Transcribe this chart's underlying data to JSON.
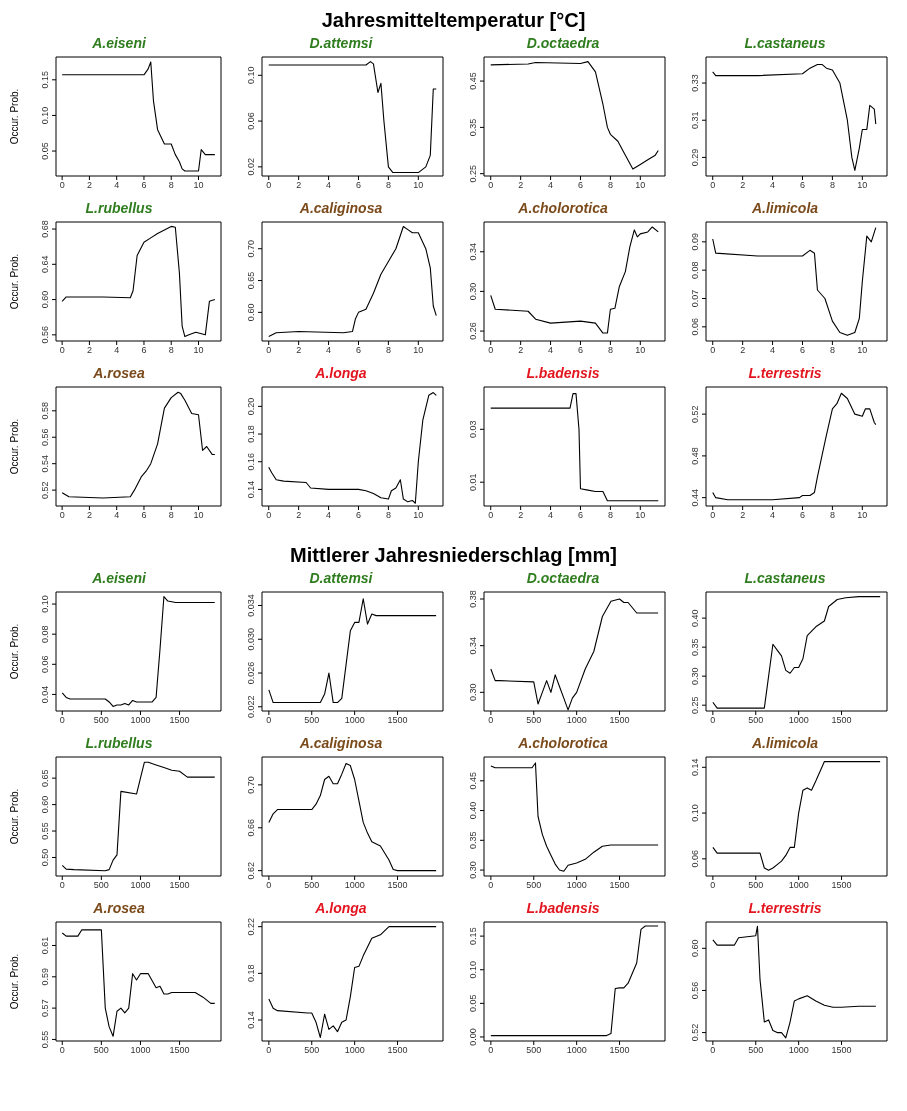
{
  "chart_data": [
    {
      "type": "line",
      "title": "A.eiseni",
      "annotations": [
        "Jahresmitteltemperatur [°C]"
      ],
      "ylabel": "Occur. Prob.",
      "x": [
        0,
        6,
        6.3,
        6.5,
        6.7,
        7,
        7.5,
        8,
        8.3,
        8.6,
        8.8,
        9,
        9.5,
        10,
        10.2,
        10.5,
        11.2
      ],
      "series": [
        {
          "color": "#000000",
          "values": [
            0.157,
            0.157,
            0.165,
            0.175,
            0.12,
            0.08,
            0.06,
            0.06,
            0.045,
            0.035,
            0.025,
            0.022,
            0.022,
            0.022,
            0.052,
            0.045,
            0.045
          ]
        }
      ],
      "xlim": [
        -0.45,
        11.65
      ],
      "xticks": [
        0,
        2,
        4,
        6,
        8,
        10
      ],
      "ylim": [
        0.015,
        0.182
      ],
      "yticks": [
        0.05,
        {
          "value": 0.1,
          "label": "0.10"
        },
        0.15
      ]
    },
    {
      "type": "line",
      "title": "D.attemsi",
      "x": [
        0,
        6.5,
        6.8,
        7,
        7.3,
        7.5,
        7.7,
        8,
        8.3,
        9,
        10,
        10.5,
        10.8,
        11,
        11.2
      ],
      "series": [
        {
          "color": "#000000",
          "values": [
            0.109,
            0.109,
            0.112,
            0.11,
            0.085,
            0.093,
            0.06,
            0.02,
            0.015,
            0.015,
            0.015,
            0.02,
            0.03,
            0.088,
            0.088
          ]
        }
      ],
      "xlim": [
        -0.45,
        11.65
      ],
      "xticks": [
        0,
        2,
        4,
        6,
        8,
        10
      ],
      "ylim": [
        0.012,
        0.116
      ],
      "yticks": [
        0.02,
        0.06,
        {
          "value": 0.1,
          "label": "0.10"
        }
      ]
    },
    {
      "type": "line",
      "title": "D.octaedra",
      "x": [
        0,
        2.5,
        3,
        6,
        6.5,
        7,
        7.5,
        7.8,
        8,
        8.5,
        9,
        9.5,
        10,
        10.5,
        11,
        11.2
      ],
      "series": [
        {
          "color": "#000000",
          "values": [
            0.485,
            0.487,
            0.49,
            0.488,
            0.492,
            0.47,
            0.4,
            0.35,
            0.335,
            0.32,
            0.29,
            0.26,
            0.27,
            0.28,
            0.29,
            0.3
          ]
        }
      ],
      "xlim": [
        -0.45,
        11.65
      ],
      "xticks": [
        0,
        2,
        4,
        6,
        8,
        10
      ],
      "ylim": [
        0.245,
        0.502
      ],
      "yticks": [
        0.25,
        0.35,
        0.45
      ]
    },
    {
      "type": "line",
      "title": "L.castaneus",
      "x": [
        0,
        0.2,
        3,
        6,
        6.5,
        7,
        7.3,
        7.6,
        8,
        8.5,
        9,
        9.3,
        9.5,
        9.8,
        10,
        10.3,
        10.5,
        10.8,
        10.9
      ],
      "series": [
        {
          "color": "#000000",
          "values": [
            0.336,
            0.334,
            0.334,
            0.335,
            0.338,
            0.34,
            0.34,
            0.338,
            0.337,
            0.33,
            0.31,
            0.29,
            0.283,
            0.295,
            0.305,
            0.305,
            0.318,
            0.316,
            0.308
          ]
        }
      ],
      "xlim": [
        -0.45,
        11.65
      ],
      "xticks": [
        0,
        2,
        4,
        6,
        8,
        10
      ],
      "ylim": [
        0.28,
        0.344
      ],
      "yticks": [
        0.29,
        0.31,
        0.33
      ]
    },
    {
      "type": "line",
      "title": "L.rubellus",
      "ylabel": "Occur. Prob.",
      "x": [
        0,
        0.3,
        3,
        5,
        5.2,
        5.5,
        6,
        6.5,
        7,
        8,
        8.3,
        8.6,
        8.8,
        9,
        9.3,
        9.8,
        10.5,
        10.8,
        11.2
      ],
      "series": [
        {
          "color": "#000000",
          "values": [
            0.598,
            0.603,
            0.603,
            0.602,
            0.61,
            0.65,
            0.665,
            0.67,
            0.675,
            0.683,
            0.682,
            0.63,
            0.57,
            0.558,
            0.56,
            0.563,
            0.56,
            0.598,
            0.6
          ]
        }
      ],
      "xlim": [
        -0.45,
        11.65
      ],
      "xticks": [
        0,
        2,
        4,
        6,
        8,
        10
      ],
      "ylim": [
        0.553,
        0.688
      ],
      "yticks": [
        0.56,
        {
          "value": 0.6,
          "label": "0.60"
        },
        0.64,
        0.68
      ]
    },
    {
      "type": "line",
      "title": "A.caliginosa",
      "x": [
        0,
        0.5,
        2,
        5,
        5.6,
        5.8,
        6,
        6.5,
        7,
        7.5,
        8,
        8.5,
        9,
        9.3,
        9.6,
        10,
        10.5,
        10.8,
        11,
        11.2
      ],
      "series": [
        {
          "color": "#000000",
          "values": [
            0.562,
            0.568,
            0.57,
            0.568,
            0.57,
            0.59,
            0.6,
            0.605,
            0.63,
            0.66,
            0.68,
            0.7,
            0.735,
            0.73,
            0.725,
            0.725,
            0.7,
            0.67,
            0.61,
            0.595
          ]
        }
      ],
      "xlim": [
        -0.45,
        11.65
      ],
      "xticks": [
        0,
        2,
        4,
        6,
        8,
        10
      ],
      "ylim": [
        0.555,
        0.742
      ],
      "yticks": [
        {
          "value": 0.6,
          "label": "0.60"
        },
        0.65,
        {
          "value": 0.7,
          "label": "0.70"
        }
      ]
    },
    {
      "type": "line",
      "title": "A.cholorotica",
      "x": [
        0,
        0.3,
        2.5,
        3,
        4,
        6,
        7,
        7.5,
        7.8,
        8,
        8.3,
        8.6,
        9,
        9.3,
        9.6,
        9.8,
        10,
        10.5,
        10.8,
        11.2
      ],
      "series": [
        {
          "color": "#000000",
          "values": [
            0.296,
            0.282,
            0.28,
            0.272,
            0.268,
            0.27,
            0.268,
            0.258,
            0.258,
            0.282,
            0.283,
            0.305,
            0.32,
            0.345,
            0.362,
            0.355,
            0.358,
            0.36,
            0.365,
            0.36
          ]
        }
      ],
      "xlim": [
        -0.45,
        11.65
      ],
      "xticks": [
        0,
        2,
        4,
        6,
        8,
        10
      ],
      "ylim": [
        0.25,
        0.37
      ],
      "yticks": [
        0.26,
        {
          "value": 0.3,
          "label": "0.30"
        },
        0.34
      ]
    },
    {
      "type": "line",
      "title": "A.limicola",
      "x": [
        0,
        0.2,
        3,
        6,
        6.5,
        6.8,
        7,
        7.5,
        8,
        8.5,
        9,
        9.5,
        9.8,
        10,
        10.3,
        10.6,
        10.9
      ],
      "series": [
        {
          "color": "#000000",
          "values": [
            0.091,
            0.086,
            0.085,
            0.085,
            0.087,
            0.086,
            0.073,
            0.07,
            0.062,
            0.058,
            0.057,
            0.058,
            0.063,
            0.076,
            0.092,
            0.09,
            0.095
          ]
        }
      ],
      "xlim": [
        -0.45,
        11.65
      ],
      "xticks": [
        0,
        2,
        4,
        6,
        8,
        10
      ],
      "ylim": [
        0.055,
        0.097
      ],
      "yticks": [
        0.06,
        0.07,
        0.08,
        0.09
      ]
    },
    {
      "type": "line",
      "title": "A.rosea",
      "ylabel": "Occur. Prob.",
      "x": [
        0,
        0.5,
        3,
        5,
        5.3,
        5.8,
        6.2,
        6.5,
        7,
        7.5,
        8,
        8.5,
        8.7,
        9,
        9.5,
        10,
        10.3,
        10.6,
        11,
        11.2
      ],
      "series": [
        {
          "color": "#000000",
          "values": [
            0.518,
            0.515,
            0.514,
            0.515,
            0.52,
            0.53,
            0.535,
            0.54,
            0.555,
            0.582,
            0.59,
            0.594,
            0.593,
            0.588,
            0.578,
            0.577,
            0.55,
            0.553,
            0.547,
            0.547
          ]
        }
      ],
      "xlim": [
        -0.45,
        11.65
      ],
      "xticks": [
        0,
        2,
        4,
        6,
        8,
        10
      ],
      "ylim": [
        0.508,
        0.598
      ],
      "yticks": [
        0.52,
        0.54,
        0.56,
        0.58
      ]
    },
    {
      "type": "line",
      "title": "A.longa",
      "x": [
        0,
        0.2,
        0.5,
        1,
        2.5,
        2.8,
        4,
        6,
        6.5,
        7,
        7.5,
        8,
        8.2,
        8.5,
        8.8,
        9,
        9.3,
        9.6,
        9.8,
        10,
        10.3,
        10.7,
        11,
        11.2
      ],
      "series": [
        {
          "color": "#000000",
          "values": [
            0.156,
            0.152,
            0.147,
            0.146,
            0.145,
            0.141,
            0.14,
            0.14,
            0.139,
            0.137,
            0.134,
            0.133,
            0.139,
            0.141,
            0.147,
            0.133,
            0.131,
            0.132,
            0.13,
            0.16,
            0.19,
            0.208,
            0.21,
            0.208
          ]
        }
      ],
      "xlim": [
        -0.45,
        11.65
      ],
      "xticks": [
        0,
        2,
        4,
        6,
        8,
        10
      ],
      "ylim": [
        0.128,
        0.214
      ],
      "yticks": [
        0.14,
        0.16,
        0.18,
        {
          "value": 0.2,
          "label": "0.20"
        }
      ]
    },
    {
      "type": "line",
      "title": "L.badensis",
      "x": [
        0,
        5.3,
        5.5,
        5.7,
        5.9,
        6,
        6.5,
        7,
        7.5,
        7.8,
        8,
        9,
        10,
        11.2
      ],
      "series": [
        {
          "color": "#000000",
          "values": [
            0.038,
            0.038,
            0.0435,
            0.0435,
            0.03,
            0.0075,
            0.007,
            0.0065,
            0.0065,
            0.003,
            0.003,
            0.003,
            0.003,
            0.003
          ]
        }
      ],
      "xlim": [
        -0.45,
        11.65
      ],
      "xticks": [
        0,
        2,
        4,
        6,
        8,
        10
      ],
      "ylim": [
        0.001,
        0.046
      ],
      "yticks": [
        0.01,
        0.03
      ]
    },
    {
      "type": "line",
      "title": "L.terrestris",
      "x": [
        0,
        0.2,
        1,
        4,
        5.8,
        6,
        6.5,
        6.8,
        7,
        7.3,
        7.6,
        8,
        8.3,
        8.6,
        9,
        9.5,
        10,
        10.2,
        10.5,
        10.8,
        10.9
      ],
      "series": [
        {
          "color": "#000000",
          "values": [
            0.445,
            0.44,
            0.438,
            0.438,
            0.44,
            0.442,
            0.442,
            0.445,
            0.46,
            0.48,
            0.5,
            0.525,
            0.53,
            0.54,
            0.535,
            0.52,
            0.518,
            0.525,
            0.525,
            0.512,
            0.51
          ]
        }
      ],
      "xlim": [
        -0.45,
        11.65
      ],
      "xticks": [
        0,
        2,
        4,
        6,
        8,
        10
      ],
      "ylim": [
        0.432,
        0.546
      ],
      "yticks": [
        0.44,
        0.48,
        0.52
      ]
    },
    {
      "type": "line",
      "title": "A.eiseni",
      "annotations": [
        "Mittlerer Jahresniederschlag [mm]"
      ],
      "ylabel": "Occur. Prob.",
      "x": [
        0,
        50,
        100,
        550,
        600,
        650,
        700,
        750,
        800,
        850,
        900,
        950,
        1150,
        1200,
        1250,
        1300,
        1350,
        1450,
        1950
      ],
      "series": [
        {
          "color": "#000000",
          "values": [
            0.041,
            0.038,
            0.037,
            0.037,
            0.035,
            0.032,
            0.033,
            0.033,
            0.034,
            0.033,
            0.036,
            0.035,
            0.035,
            0.038,
            0.07,
            0.105,
            0.102,
            0.101,
            0.101
          ]
        }
      ],
      "xlim": [
        -80,
        2030
      ],
      "xticks": [
        0,
        500,
        1000,
        1500
      ],
      "ylim": [
        0.029,
        0.108
      ],
      "yticks": [
        0.04,
        0.06,
        0.08,
        {
          "value": 0.1,
          "label": "0.10"
        }
      ]
    },
    {
      "type": "line",
      "title": "D.attemsi",
      "x": [
        0,
        50,
        100,
        600,
        650,
        700,
        750,
        800,
        850,
        900,
        950,
        1000,
        1050,
        1100,
        1150,
        1200,
        1250,
        1950
      ],
      "series": [
        {
          "color": "#000000",
          "values": [
            0.024,
            0.0225,
            0.0225,
            0.0225,
            0.0235,
            0.026,
            0.0225,
            0.0225,
            0.023,
            0.027,
            0.031,
            0.032,
            0.032,
            0.0348,
            0.0318,
            0.033,
            0.0328,
            0.0328
          ]
        }
      ],
      "xlim": [
        -80,
        2030
      ],
      "xticks": [
        0,
        500,
        1000,
        1500
      ],
      "ylim": [
        0.0215,
        0.0356
      ],
      "yticks": [
        0.022,
        0.026,
        {
          "value": 0.03,
          "label": "0.030"
        },
        0.034
      ]
    },
    {
      "type": "line",
      "title": "D.octaedra",
      "x": [
        0,
        50,
        100,
        500,
        550,
        600,
        650,
        700,
        750,
        800,
        850,
        900,
        950,
        1000,
        1100,
        1200,
        1300,
        1400,
        1500,
        1550,
        1600,
        1700,
        1950
      ],
      "series": [
        {
          "color": "#000000",
          "values": [
            0.32,
            0.31,
            0.31,
            0.309,
            0.29,
            0.3,
            0.31,
            0.3,
            0.315,
            0.305,
            0.295,
            0.285,
            0.295,
            0.3,
            0.32,
            0.335,
            0.365,
            0.378,
            0.38,
            0.377,
            0.377,
            0.368,
            0.368
          ]
        }
      ],
      "xlim": [
        -80,
        2030
      ],
      "xticks": [
        0,
        500,
        1000,
        1500
      ],
      "ylim": [
        0.284,
        0.386
      ],
      "yticks": [
        {
          "value": 0.3,
          "label": "0.30"
        },
        0.34,
        0.38
      ]
    },
    {
      "type": "line",
      "title": "L.castaneus",
      "x": [
        0,
        50,
        600,
        650,
        700,
        750,
        800,
        850,
        900,
        950,
        1000,
        1050,
        1100,
        1200,
        1300,
        1350,
        1450,
        1550,
        1700,
        1950
      ],
      "series": [
        {
          "color": "#000000",
          "values": [
            0.255,
            0.245,
            0.245,
            0.3,
            0.355,
            0.345,
            0.335,
            0.31,
            0.305,
            0.315,
            0.315,
            0.33,
            0.37,
            0.385,
            0.395,
            0.42,
            0.432,
            0.435,
            0.437,
            0.437
          ]
        }
      ],
      "xlim": [
        -80,
        2030
      ],
      "xticks": [
        0,
        500,
        1000,
        1500
      ],
      "ylim": [
        0.24,
        0.445
      ],
      "yticks": [
        0.25,
        {
          "value": 0.3,
          "label": "0.30"
        },
        0.35,
        {
          "value": 0.4,
          "label": "0.40"
        }
      ]
    },
    {
      "type": "line",
      "title": "L.rubellus",
      "ylabel": "Occur. Prob.",
      "x": [
        0,
        50,
        150,
        550,
        600,
        650,
        700,
        750,
        950,
        1000,
        1050,
        1100,
        1200,
        1300,
        1400,
        1500,
        1600,
        1700,
        1950
      ],
      "series": [
        {
          "color": "#000000",
          "values": [
            0.485,
            0.478,
            0.477,
            0.475,
            0.477,
            0.495,
            0.505,
            0.625,
            0.62,
            0.65,
            0.68,
            0.68,
            0.675,
            0.67,
            0.665,
            0.663,
            0.652,
            0.652,
            0.652
          ]
        }
      ],
      "xlim": [
        -80,
        2030
      ],
      "xticks": [
        0,
        500,
        1000,
        1500
      ],
      "ylim": [
        0.465,
        0.69
      ],
      "yticks": [
        {
          "value": 0.5,
          "label": "0.50"
        },
        0.55,
        {
          "value": 0.6,
          "label": "0.60"
        },
        0.65
      ]
    },
    {
      "type": "line",
      "title": "A.caliginosa",
      "x": [
        0,
        50,
        100,
        500,
        550,
        600,
        650,
        700,
        750,
        800,
        850,
        900,
        950,
        1000,
        1050,
        1100,
        1150,
        1200,
        1300,
        1400,
        1450,
        1500,
        1950
      ],
      "series": [
        {
          "color": "#000000",
          "values": [
            0.665,
            0.673,
            0.677,
            0.677,
            0.682,
            0.69,
            0.705,
            0.708,
            0.701,
            0.701,
            0.71,
            0.72,
            0.718,
            0.705,
            0.685,
            0.665,
            0.655,
            0.647,
            0.643,
            0.63,
            0.621,
            0.62,
            0.62
          ]
        }
      ],
      "xlim": [
        -80,
        2030
      ],
      "xticks": [
        0,
        500,
        1000,
        1500
      ],
      "ylim": [
        0.615,
        0.726
      ],
      "yticks": [
        0.62,
        0.66,
        {
          "value": 0.7,
          "label": "0.70"
        }
      ]
    },
    {
      "type": "line",
      "title": "A.cholorotica",
      "x": [
        0,
        50,
        250,
        480,
        520,
        550,
        600,
        650,
        700,
        750,
        800,
        850,
        900,
        1000,
        1100,
        1200,
        1300,
        1400,
        1950
      ],
      "series": [
        {
          "color": "#000000",
          "values": [
            0.475,
            0.472,
            0.472,
            0.472,
            0.48,
            0.39,
            0.36,
            0.34,
            0.325,
            0.31,
            0.3,
            0.298,
            0.308,
            0.312,
            0.318,
            0.33,
            0.34,
            0.342,
            0.342
          ]
        }
      ],
      "xlim": [
        -80,
        2030
      ],
      "xticks": [
        0,
        500,
        1000,
        1500
      ],
      "ylim": [
        0.29,
        0.49
      ],
      "yticks": [
        {
          "value": 0.3,
          "label": "0.30"
        },
        0.35,
        {
          "value": 0.4,
          "label": "0.40"
        },
        0.45
      ]
    },
    {
      "type": "line",
      "title": "A.limicola",
      "x": [
        0,
        50,
        500,
        550,
        600,
        650,
        700,
        750,
        800,
        850,
        900,
        950,
        1000,
        1050,
        1100,
        1150,
        1200,
        1300,
        1950
      ],
      "series": [
        {
          "color": "#000000",
          "values": [
            0.07,
            0.065,
            0.065,
            0.065,
            0.052,
            0.05,
            0.052,
            0.055,
            0.058,
            0.063,
            0.07,
            0.07,
            0.1,
            0.12,
            0.122,
            0.12,
            0.128,
            0.145,
            0.145
          ]
        }
      ],
      "xlim": [
        -80,
        2030
      ],
      "xticks": [
        0,
        500,
        1000,
        1500
      ],
      "ylim": [
        0.045,
        0.149
      ],
      "yticks": [
        0.06,
        {
          "value": 0.1,
          "label": "0.10"
        },
        0.14
      ]
    },
    {
      "type": "line",
      "title": "A.rosea",
      "ylabel": "Occur. Prob.",
      "x": [
        0,
        50,
        200,
        250,
        500,
        550,
        600,
        650,
        700,
        750,
        800,
        850,
        900,
        950,
        1000,
        1100,
        1200,
        1250,
        1300,
        1350,
        1400,
        1500,
        1700,
        1800,
        1900,
        1950
      ],
      "series": [
        {
          "color": "#000000",
          "values": [
            0.618,
            0.616,
            0.616,
            0.62,
            0.62,
            0.57,
            0.558,
            0.552,
            0.568,
            0.57,
            0.567,
            0.57,
            0.592,
            0.588,
            0.592,
            0.592,
            0.583,
            0.584,
            0.579,
            0.579,
            0.58,
            0.58,
            0.58,
            0.577,
            0.573,
            0.573
          ]
        }
      ],
      "xlim": [
        -80,
        2030
      ],
      "xticks": [
        0,
        500,
        1000,
        1500
      ],
      "ylim": [
        0.549,
        0.625
      ],
      "yticks": [
        0.55,
        0.57,
        0.59,
        0.61
      ]
    },
    {
      "type": "line",
      "title": "A.longa",
      "x": [
        0,
        50,
        100,
        450,
        500,
        550,
        600,
        650,
        700,
        750,
        800,
        850,
        900,
        950,
        1000,
        1050,
        1100,
        1200,
        1300,
        1400,
        1950
      ],
      "series": [
        {
          "color": "#000000",
          "values": [
            0.158,
            0.15,
            0.148,
            0.146,
            0.146,
            0.138,
            0.125,
            0.145,
            0.132,
            0.135,
            0.13,
            0.138,
            0.14,
            0.16,
            0.185,
            0.186,
            0.195,
            0.21,
            0.213,
            0.22,
            0.22
          ]
        }
      ],
      "xlim": [
        -80,
        2030
      ],
      "xticks": [
        0,
        500,
        1000,
        1500
      ],
      "ylim": [
        0.122,
        0.224
      ],
      "yticks": [
        0.14,
        0.18,
        0.22
      ]
    },
    {
      "type": "line",
      "title": "L.badensis",
      "x": [
        0,
        1350,
        1400,
        1450,
        1500,
        1550,
        1600,
        1700,
        1750,
        1800,
        1950
      ],
      "series": [
        {
          "color": "#000000",
          "values": [
            0.002,
            0.002,
            0.005,
            0.072,
            0.073,
            0.073,
            0.08,
            0.11,
            0.16,
            0.165,
            0.165
          ]
        }
      ],
      "xlim": [
        -80,
        2030
      ],
      "xticks": [
        0,
        500,
        1000,
        1500
      ],
      "ylim": [
        -0.006,
        0.171
      ],
      "yticks": [
        {
          "value": 0,
          "label": "0.00"
        },
        0.05,
        {
          "value": 0.1,
          "label": "0.10"
        },
        0.15
      ]
    },
    {
      "type": "line",
      "title": "L.terrestris",
      "x": [
        0,
        50,
        100,
        250,
        300,
        500,
        520,
        550,
        600,
        650,
        700,
        750,
        800,
        850,
        900,
        950,
        1000,
        1100,
        1200,
        1300,
        1400,
        1500,
        1700,
        1900
      ],
      "series": [
        {
          "color": "#000000",
          "values": [
            0.608,
            0.603,
            0.603,
            0.603,
            0.61,
            0.612,
            0.621,
            0.57,
            0.53,
            0.532,
            0.522,
            0.52,
            0.52,
            0.515,
            0.53,
            0.55,
            0.552,
            0.555,
            0.55,
            0.546,
            0.544,
            0.544,
            0.545,
            0.545
          ]
        }
      ],
      "xlim": [
        -80,
        2030
      ],
      "xticks": [
        0,
        500,
        1000,
        1500
      ],
      "ylim": [
        0.512,
        0.625
      ],
      "yticks": [
        0.52,
        0.56,
        {
          "value": 0.6,
          "label": "0.60"
        }
      ]
    }
  ]
}
